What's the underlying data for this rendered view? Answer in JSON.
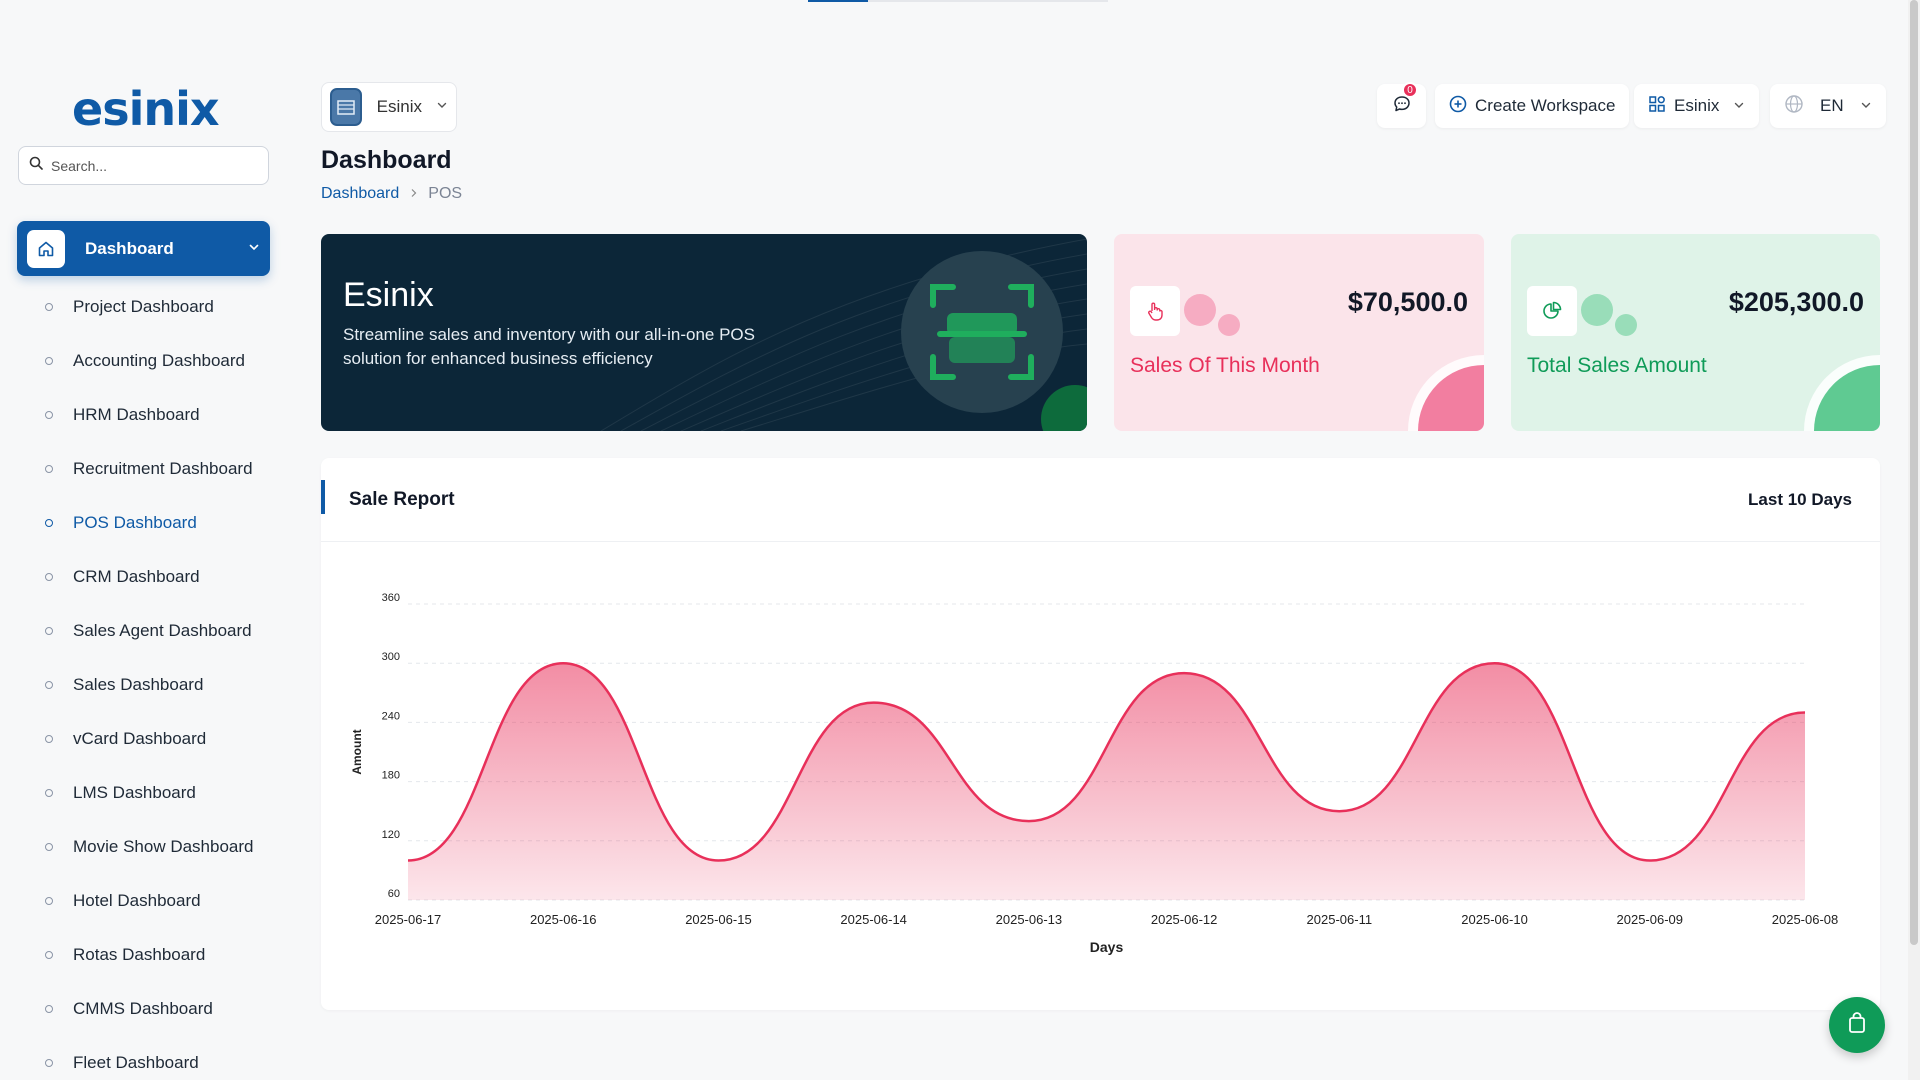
{
  "brand": {
    "logo_text": "esinix",
    "color": "#0f5aa6"
  },
  "sidebar": {
    "search_placeholder": "Search...",
    "main_item": "Dashboard",
    "items": [
      {
        "label": "Project Dashboard"
      },
      {
        "label": "Accounting Dashboard"
      },
      {
        "label": "HRM Dashboard"
      },
      {
        "label": "Recruitment Dashboard"
      },
      {
        "label": "POS Dashboard",
        "active": true
      },
      {
        "label": "CRM Dashboard"
      },
      {
        "label": "Sales Agent Dashboard"
      },
      {
        "label": "Sales Dashboard"
      },
      {
        "label": "vCard Dashboard"
      },
      {
        "label": "LMS Dashboard"
      },
      {
        "label": "Movie Show Dashboard"
      },
      {
        "label": "Hotel Dashboard"
      },
      {
        "label": "Rotas Dashboard"
      },
      {
        "label": "CMMS Dashboard"
      },
      {
        "label": "Fleet Dashboard"
      }
    ]
  },
  "header": {
    "workspace": "Esinix",
    "notification_count": "0",
    "create_workspace": "Create Workspace",
    "workspace_menu": "Esinix",
    "language": "EN"
  },
  "page": {
    "title": "Dashboard",
    "breadcrumb": [
      "Dashboard",
      "POS"
    ]
  },
  "hero": {
    "title": "Esinix",
    "text": "Streamline sales and inventory with our all-in-one POS solution for enhanced business efficiency"
  },
  "stats": [
    {
      "amount": "$70,500.0",
      "title": "Sales Of This Month",
      "color": "#e8305a",
      "bg": "#fbe4ea",
      "accent": "#f27ea0"
    },
    {
      "amount": "$205,300.0",
      "title": "Total Sales Amount",
      "color": "#0f9b58",
      "bg": "#dff3e8",
      "accent": "#5fca92"
    }
  ],
  "report": {
    "title": "Sale Report",
    "period": "Last 10 Days"
  },
  "chart_data": {
    "type": "area",
    "xlabel": "Days",
    "ylabel": "Amount",
    "ylim": [
      60,
      360
    ],
    "yticks": [
      60,
      120,
      180,
      240,
      300,
      360
    ],
    "grid": true,
    "color": "#e8305a",
    "x": [
      "2025-06-17",
      "2025-06-16",
      "2025-06-15",
      "2025-06-14",
      "2025-06-13",
      "2025-06-12",
      "2025-06-11",
      "2025-06-10",
      "2025-06-09",
      "2025-06-08"
    ],
    "values": [
      100,
      300,
      100,
      260,
      140,
      290,
      150,
      300,
      100,
      250
    ]
  }
}
